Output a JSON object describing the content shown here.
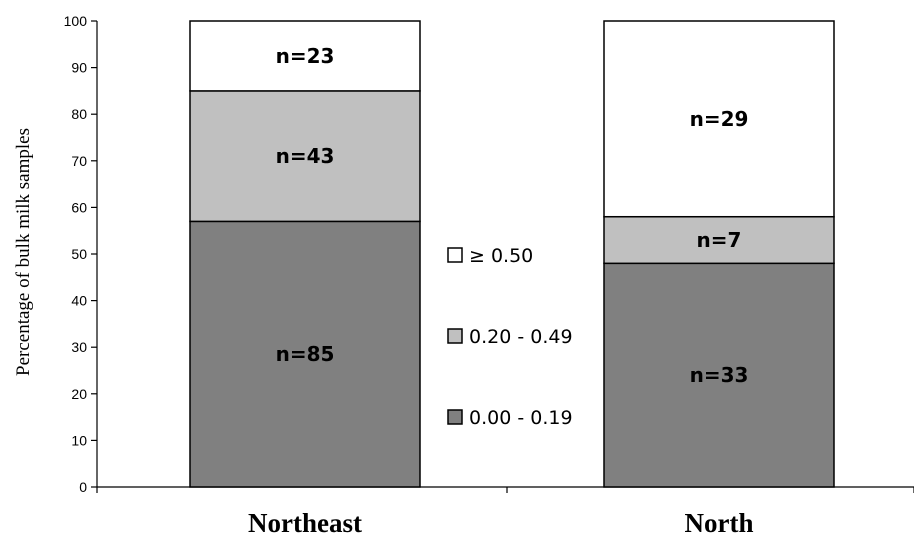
{
  "chart_data": {
    "type": "bar",
    "stacked": true,
    "categories": [
      "Northeast",
      "North"
    ],
    "ylabel": "Percentage of bulk milk samples",
    "ylim": [
      0,
      100
    ],
    "yticks": [
      0,
      10,
      20,
      30,
      40,
      50,
      60,
      70,
      80,
      90,
      100
    ],
    "grid": false,
    "series": [
      {
        "name": "0.00 - 0.19",
        "color": "#808080",
        "values": [
          57,
          48
        ],
        "labels": [
          "n=85",
          "n=33"
        ]
      },
      {
        "name": "0.20 - 0.49",
        "color": "#c0c0c0",
        "values": [
          28,
          10
        ],
        "labels": [
          "n=43",
          "n=7"
        ]
      },
      {
        "name": "≥ 0.50",
        "color": "#ffffff",
        "values": [
          15,
          42
        ],
        "labels": [
          "n=23",
          "n=29"
        ]
      }
    ],
    "legend": {
      "placement": "center",
      "order": [
        "≥ 0.50",
        "0.20 - 0.49",
        "0.00 - 0.19"
      ]
    }
  }
}
